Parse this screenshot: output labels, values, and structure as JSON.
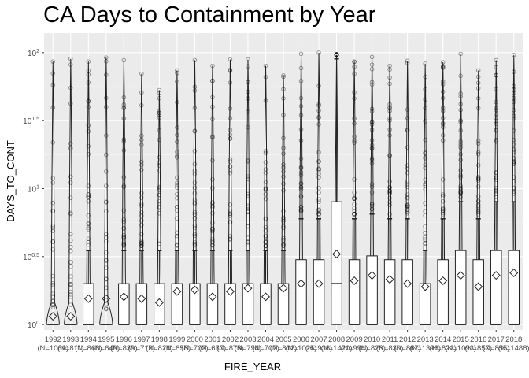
{
  "chart_data": {
    "type": "box",
    "title": "CA Days to Containment by Year",
    "xlabel": "FIRE_YEAR",
    "ylabel": "DAYS_TO_CONT",
    "y_scale": "log10",
    "ylim": [
      1,
      130
    ],
    "y_ticks": [
      {
        "value": 1,
        "base": "10",
        "exp": "0"
      },
      {
        "value": 3.1623,
        "base": "10",
        "exp": "0.5"
      },
      {
        "value": 10,
        "base": "10",
        "exp": "1"
      },
      {
        "value": 31.623,
        "base": "10",
        "exp": "1.5"
      },
      {
        "value": 100,
        "base": "10",
        "exp": "2"
      }
    ],
    "grid": true,
    "categories": [
      "1992",
      "1993",
      "1994",
      "1995",
      "1996",
      "1997",
      "1998",
      "1999",
      "2000",
      "2001",
      "2002",
      "2003",
      "2004",
      "2005",
      "2006",
      "2007",
      "2008",
      "2009",
      "2010",
      "2011",
      "2012",
      "2013",
      "2014",
      "2015",
      "2016",
      "2017",
      "2018"
    ],
    "n_labels": [
      "(N=1069)",
      "(N=811)",
      "(N=866)",
      "(N=649)",
      "(N=839)",
      "(N=712)",
      "(N=824)",
      "(N=858)",
      "(N=702)",
      "(N=637)",
      "(N=878)",
      "(N=794)",
      "(N=707)",
      "(N=812)",
      "(N=1025)",
      "(N=938)",
      "(N=1420)",
      "(N=994)",
      "(N=826)",
      "(N=830)",
      "(N=867)",
      "(N=1396)",
      "(N=822)",
      "(N=1093)",
      "(N=857)",
      "(N=855)",
      "(N=1488)"
    ],
    "boxes": [
      {
        "q1": 1,
        "median": 1,
        "q3": 1,
        "whisker_high": 1,
        "mean": 1.15
      },
      {
        "q1": 1,
        "median": 1,
        "q3": 1,
        "whisker_high": 1,
        "mean": 1.15
      },
      {
        "q1": 1,
        "median": 1,
        "q3": 2,
        "whisker_high": 3.5,
        "mean": 1.55
      },
      {
        "q1": 1,
        "median": 1,
        "q3": 1,
        "whisker_high": 1,
        "mean": 1.55
      },
      {
        "q1": 1,
        "median": 1,
        "q3": 2,
        "whisker_high": 3.5,
        "mean": 1.6
      },
      {
        "q1": 1,
        "median": 1,
        "q3": 2,
        "whisker_high": 3.5,
        "mean": 1.55
      },
      {
        "q1": 1,
        "median": 1,
        "q3": 2,
        "whisker_high": 3.5,
        "mean": 1.45
      },
      {
        "q1": 1,
        "median": 1,
        "q3": 2,
        "whisker_high": 3.5,
        "mean": 1.75
      },
      {
        "q1": 1,
        "median": 1,
        "q3": 2,
        "whisker_high": 3.5,
        "mean": 1.8
      },
      {
        "q1": 1,
        "median": 1,
        "q3": 2,
        "whisker_high": 3.5,
        "mean": 1.6
      },
      {
        "q1": 1,
        "median": 1,
        "q3": 2,
        "whisker_high": 3.5,
        "mean": 1.75
      },
      {
        "q1": 1,
        "median": 1,
        "q3": 2,
        "whisker_high": 3.5,
        "mean": 1.85
      },
      {
        "q1": 1,
        "median": 1,
        "q3": 2,
        "whisker_high": 3.5,
        "mean": 1.6
      },
      {
        "q1": 1,
        "median": 1,
        "q3": 2,
        "whisker_high": 3.5,
        "mean": 1.85
      },
      {
        "q1": 1,
        "median": 1,
        "q3": 3,
        "whisker_high": 6,
        "mean": 2
      },
      {
        "q1": 1,
        "median": 1,
        "q3": 3,
        "whisker_high": 6,
        "mean": 2
      },
      {
        "q1": 1,
        "median": 2,
        "q3": 8,
        "whisker_high": 90,
        "mean": 3.3
      },
      {
        "q1": 1,
        "median": 1,
        "q3": 3,
        "whisker_high": 6,
        "mean": 2.1
      },
      {
        "q1": 1,
        "median": 1,
        "q3": 3.2,
        "whisker_high": 6.5,
        "mean": 2.3
      },
      {
        "q1": 1,
        "median": 1,
        "q3": 3,
        "whisker_high": 6,
        "mean": 2.15
      },
      {
        "q1": 1,
        "median": 1,
        "q3": 3,
        "whisker_high": 6,
        "mean": 2
      },
      {
        "q1": 1,
        "median": 1,
        "q3": 2,
        "whisker_high": 3.5,
        "mean": 1.9
      },
      {
        "q1": 1,
        "median": 1,
        "q3": 3,
        "whisker_high": 6,
        "mean": 2.1
      },
      {
        "q1": 1,
        "median": 1,
        "q3": 3.5,
        "whisker_high": 8,
        "mean": 2.3
      },
      {
        "q1": 1,
        "median": 1,
        "q3": 3,
        "whisker_high": 6,
        "mean": 1.9
      },
      {
        "q1": 1,
        "median": 1,
        "q3": 3.5,
        "whisker_high": 8,
        "mean": 2.3
      },
      {
        "q1": 1,
        "median": 1,
        "q3": 3.5,
        "whisker_high": 8,
        "mean": 2.4
      }
    ],
    "outlier_max": [
      86,
      90,
      86,
      92,
      88,
      70,
      53,
      74,
      88,
      80,
      89,
      89,
      80,
      68,
      98,
      100,
      96,
      86,
      93,
      80,
      87,
      83,
      85,
      98,
      74,
      88,
      96
    ]
  }
}
